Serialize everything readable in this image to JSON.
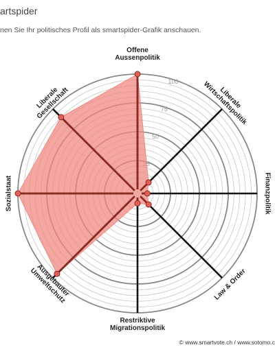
{
  "header": {
    "title": "artspider",
    "subtitle": "nen Sie Ihr politisches Profil als smartspider-Grafik anschauen."
  },
  "footer": {
    "copyright": "© www.smartvote.ch / www.sotomo.c"
  },
  "colors": {
    "fill": "#f08a80",
    "stroke": "#8e2a24",
    "marker": "#e06058",
    "axis": "#111111",
    "ring_major": "#888888",
    "ring_minor": "#cccccc"
  },
  "chart_data": {
    "type": "radar",
    "scale": [
      0,
      100
    ],
    "ticks": [
      "25",
      "50",
      "75",
      "100"
    ],
    "axes": [
      {
        "label": [
          "Offene",
          "Aussenpolitik"
        ],
        "value": 100
      },
      {
        "label": [
          "Liberale",
          "Wirtschaftspolitik"
        ],
        "value": 10
      },
      {
        "label": [
          "Finanzpolitik"
        ],
        "value": 5
      },
      {
        "label": [
          "Law & Order"
        ],
        "value": 10
      },
      {
        "label": [
          "Restriktive",
          "Migrationspolitik"
        ],
        "value": 5
      },
      {
        "label": [
          "Ausgebauter",
          "Umweltschutz"
        ],
        "value": 95
      },
      {
        "label": [
          "Sozialstaat"
        ],
        "value": 100
      },
      {
        "label": [
          "Liberale",
          "Gesellschaft"
        ],
        "value": 90
      }
    ]
  }
}
